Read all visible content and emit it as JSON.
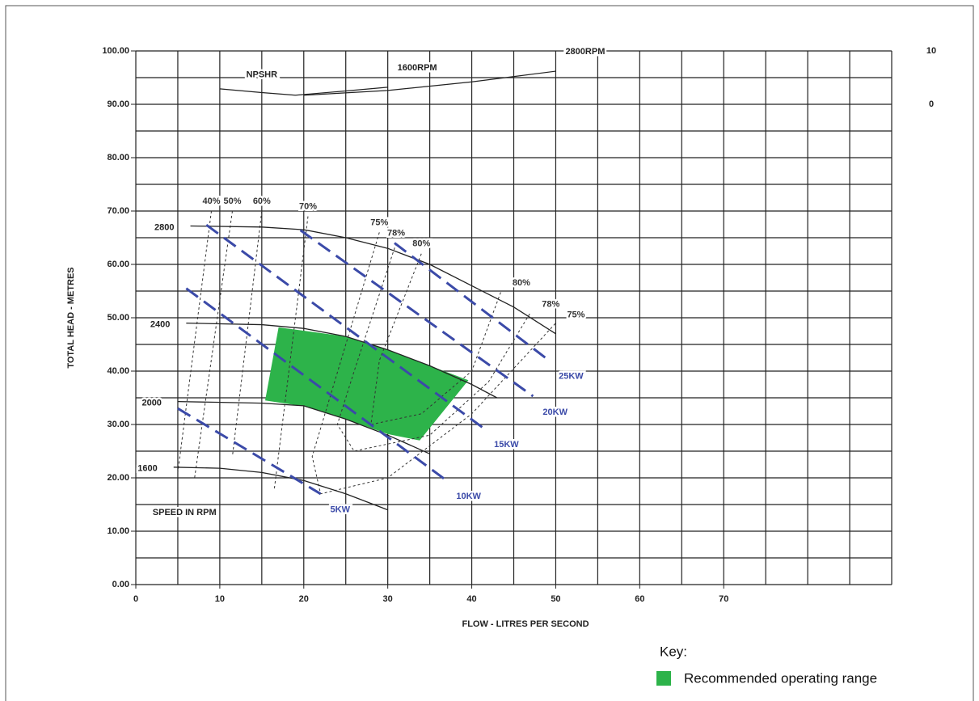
{
  "chart_data": {
    "type": "line",
    "x_label": "FLOW  -  LITRES PER SECOND",
    "y_label": "TOTAL HEAD  -  METRES",
    "xlim": [
      0,
      90
    ],
    "ylim": [
      0,
      100
    ],
    "xticks": [
      0,
      10,
      20,
      30,
      40,
      50,
      60,
      70
    ],
    "yticks": [
      {
        "value": 0,
        "label": "0.00"
      },
      {
        "value": 10,
        "label": "10.00"
      },
      {
        "value": 20,
        "label": "20.00"
      },
      {
        "value": 30,
        "label": "30.00"
      },
      {
        "value": 40,
        "label": "40.00"
      },
      {
        "value": 50,
        "label": "50.00"
      },
      {
        "value": 60,
        "label": "60.00"
      },
      {
        "value": 70,
        "label": "70.00"
      },
      {
        "value": 80,
        "label": "80.00"
      },
      {
        "value": 90,
        "label": "90.00"
      },
      {
        "value": 100,
        "label": "100.00"
      }
    ],
    "x_gridlines": [
      0,
      5,
      10,
      15,
      20,
      25,
      30,
      35,
      40,
      45,
      50,
      55,
      60,
      65,
      70,
      75,
      80,
      85,
      90
    ],
    "y_gridlines": [
      0,
      5,
      10,
      15,
      20,
      25,
      30,
      35,
      40,
      45,
      50,
      55,
      60,
      65,
      70,
      75,
      80,
      85,
      90,
      95,
      100
    ],
    "y2lim": [
      -90,
      10
    ],
    "y2ticks": [
      0,
      10
    ],
    "npshr_label": "NPSHR",
    "speed_label": "SPEED IN RPM",
    "key_title": "Key:",
    "region": {
      "name": "Recommended operating range",
      "color": "#2db34a",
      "x": [
        17,
        25,
        30,
        35,
        39.6,
        33.8,
        30,
        25,
        20,
        15.4
      ],
      "values": [
        48.2,
        46.5,
        44,
        41,
        38.3,
        27,
        28.2,
        31,
        33.4,
        34.5
      ]
    },
    "speed_curves": [
      {
        "name": "2800",
        "color": "#222",
        "x": [
          6.5,
          15,
          20,
          25,
          30,
          35,
          40,
          45,
          50
        ],
        "values": [
          67.2,
          67,
          66.5,
          65,
          63,
          60,
          56,
          52,
          47
        ]
      },
      {
        "name": "2400",
        "color": "#222",
        "x": [
          6,
          15,
          20,
          25,
          30,
          35,
          40,
          43
        ],
        "values": [
          49,
          48.7,
          48,
          46.5,
          44,
          41,
          37.5,
          35
        ]
      },
      {
        "name": "2000",
        "color": "#222",
        "x": [
          5,
          15,
          20,
          25,
          30,
          35
        ],
        "values": [
          34.3,
          34,
          33.5,
          31,
          28,
          24.5
        ]
      },
      {
        "name": "1600",
        "color": "#222",
        "x": [
          4.5,
          10,
          15,
          20,
          25,
          30
        ],
        "values": [
          22,
          21.8,
          21,
          19.5,
          17,
          14
        ]
      }
    ],
    "power_lines": [
      {
        "name": "5KW",
        "color": "#3b4aa8",
        "x": [
          5,
          22
        ],
        "values": [
          33,
          17
        ]
      },
      {
        "name": "10KW",
        "color": "#3b4aa8",
        "x": [
          6,
          37
        ],
        "values": [
          55.5,
          19.5
        ]
      },
      {
        "name": "15KW",
        "color": "#3b4aa8",
        "x": [
          8.4,
          41.5
        ],
        "values": [
          67.4,
          29.2
        ]
      },
      {
        "name": "20KW",
        "color": "#3b4aa8",
        "x": [
          19.6,
          47.3
        ],
        "values": [
          66.4,
          35.3
        ]
      },
      {
        "name": "25KW",
        "color": "#3b4aa8",
        "x": [
          30.8,
          49.2
        ],
        "values": [
          64,
          42
        ]
      }
    ],
    "efficiency_curves": [
      {
        "name": "40%",
        "color": "#333",
        "x": [
          9,
          5
        ],
        "values": [
          70,
          21
        ]
      },
      {
        "name": "50%",
        "color": "#333",
        "x": [
          11.5,
          7
        ],
        "values": [
          70,
          20
        ]
      },
      {
        "name": "60%",
        "color": "#333",
        "x": [
          15,
          11.5
        ],
        "values": [
          70,
          24
        ]
      },
      {
        "name": "70%",
        "color": "#333",
        "x": [
          20.5,
          16.5
        ],
        "values": [
          69,
          18
        ]
      },
      {
        "name": "75%",
        "color": "#333",
        "x": [
          29,
          25,
          21,
          22,
          30,
          40,
          50
        ],
        "values": [
          66,
          45,
          24,
          17,
          20,
          32,
          49
        ]
      },
      {
        "name": "78%",
        "color": "#333",
        "x": [
          31,
          26,
          24,
          26,
          35,
          42,
          47
        ],
        "values": [
          64,
          40,
          30,
          25,
          28,
          38,
          51
        ]
      },
      {
        "name": "80%",
        "color": "#333",
        "x": [
          34,
          29,
          28,
          34,
          40,
          43.5
        ],
        "values": [
          62,
          42,
          30,
          32,
          40,
          55
        ]
      }
    ],
    "npshr_curves": [
      {
        "name": "1600RPM",
        "color": "#222",
        "axis": "y2",
        "x": [
          10,
          15,
          19,
          25,
          30
        ],
        "values": [
          2.9,
          2.2,
          1.7,
          2.5,
          3.2
        ]
      },
      {
        "name": "2800RPM",
        "color": "#222",
        "axis": "y2",
        "x": [
          20,
          30,
          40,
          50
        ],
        "values": [
          1.7,
          2.6,
          4.2,
          6.2
        ]
      }
    ]
  }
}
